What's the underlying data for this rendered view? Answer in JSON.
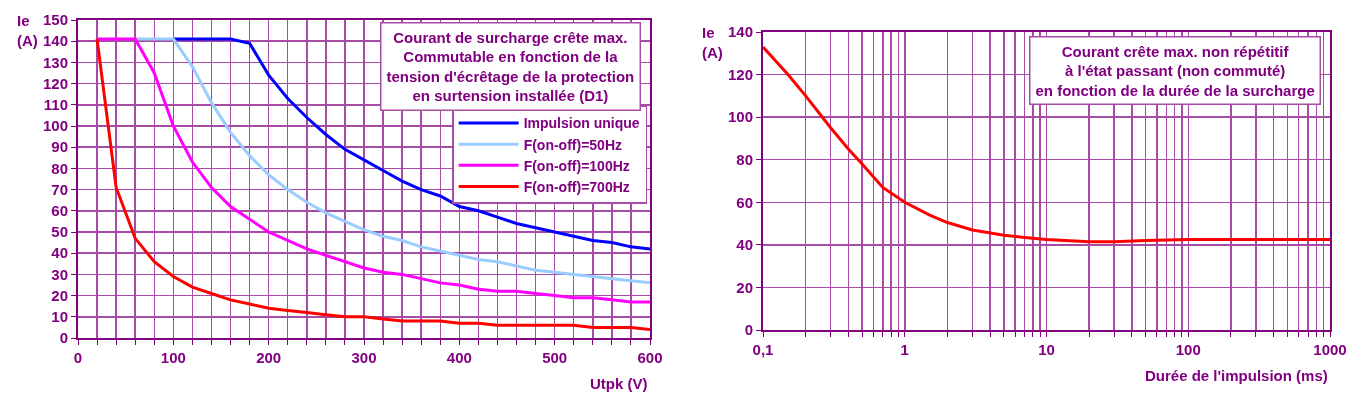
{
  "chart_data": [
    {
      "type": "line",
      "title": "Courant de surcharge crête max.\nCommutable en fonction de la\ntension d'écrêtage de la protection\nen surtension installée (D1)",
      "xlabel": "Utpk (V)",
      "ylabel": "Ie (A)",
      "x": [
        20,
        40,
        60,
        80,
        100,
        120,
        140,
        160,
        180,
        200,
        220,
        240,
        260,
        280,
        300,
        320,
        340,
        360,
        380,
        400,
        420,
        440,
        460,
        480,
        500,
        520,
        540,
        560,
        580,
        600
      ],
      "series": [
        {
          "name": "Impulsion unique",
          "color": "#0000ff",
          "values": [
            null,
            null,
            null,
            null,
            141,
            141,
            141,
            141,
            139,
            124,
            113,
            104,
            96,
            89,
            84,
            79,
            74,
            70,
            67,
            62,
            60,
            57,
            54,
            52,
            50,
            48,
            46,
            45,
            43,
            42
          ]
        },
        {
          "name": "F(on-off)=50Hz",
          "color": "#99ccff",
          "values": [
            null,
            null,
            141,
            141,
            141,
            128,
            111,
            97,
            86,
            77,
            70,
            64,
            59,
            55,
            51,
            48,
            46,
            43,
            41,
            39,
            37,
            36,
            34,
            32,
            31,
            30,
            29,
            28,
            27,
            26
          ]
        },
        {
          "name": "F(on-off)=100Hz",
          "color": "#ff00ff",
          "values": [
            141,
            141,
            141,
            125,
            100,
            83,
            71,
            62,
            56,
            50,
            46,
            42,
            39,
            36,
            33,
            31,
            30,
            28,
            26,
            25,
            23,
            22,
            22,
            21,
            20,
            19,
            19,
            18,
            17,
            17
          ]
        },
        {
          "name": "F(on-off)=700Hz",
          "color": "#ff0000",
          "values": [
            141,
            71,
            47,
            36,
            29,
            24,
            21,
            18,
            16,
            14,
            13,
            12,
            11,
            10,
            10,
            9,
            8,
            8,
            8,
            7,
            7,
            6,
            6,
            6,
            6,
            6,
            5,
            5,
            5,
            4
          ]
        }
      ],
      "xlim": [
        0,
        600
      ],
      "xticks": [
        0,
        {
          "value": 20,
          "label": null
        },
        {
          "value": 40,
          "label": null
        },
        {
          "value": 60,
          "label": null
        },
        {
          "value": 80,
          "label": null
        },
        100,
        {
          "value": 120,
          "label": null
        },
        {
          "value": 140,
          "label": null
        },
        {
          "value": 160,
          "label": null
        },
        {
          "value": 180,
          "label": null
        },
        200,
        {
          "value": 220,
          "label": null
        },
        {
          "value": 240,
          "label": null
        },
        {
          "value": 260,
          "label": null
        },
        {
          "value": 280,
          "label": null
        },
        300,
        {
          "value": 320,
          "label": null
        },
        {
          "value": 340,
          "label": null
        },
        {
          "value": 360,
          "label": null
        },
        {
          "value": 380,
          "label": null
        },
        400,
        {
          "value": 420,
          "label": null
        },
        {
          "value": 440,
          "label": null
        },
        {
          "value": 460,
          "label": null
        },
        {
          "value": 480,
          "label": null
        },
        500,
        {
          "value": 520,
          "label": null
        },
        {
          "value": 540,
          "label": null
        },
        {
          "value": 560,
          "label": null
        },
        {
          "value": 580,
          "label": null
        },
        600
      ],
      "ylim": [
        0,
        150
      ],
      "yticks": [
        0,
        10,
        20,
        30,
        40,
        50,
        60,
        70,
        80,
        90,
        100,
        110,
        120,
        130,
        140,
        150
      ],
      "grid": true,
      "legend": "top right"
    },
    {
      "type": "line",
      "title": "Courant crête max. non répétitif\nà l'état passant (non commuté)\nen fonction de la durée de la surcharge",
      "xlabel": "Durée de l'impulsion (ms)",
      "ylabel": "Ie (A)",
      "series": [
        {
          "color": "#ff0000",
          "x": [
            0.1,
            0.15,
            0.2,
            0.3,
            0.4,
            0.5,
            0.7,
            1,
            1.5,
            2,
            3,
            5,
            7,
            10,
            20,
            30,
            50,
            100,
            1000
          ],
          "values": [
            133,
            120,
            110,
            95,
            85,
            78,
            67,
            60,
            54,
            50.5,
            47,
            44.5,
            43.5,
            42.5,
            41.5,
            41.5,
            42,
            42.5,
            42.5
          ]
        }
      ],
      "xlim": [
        0.1,
        1000
      ],
      "xticks": [
        {
          "value": 0.1,
          "label": "0,1"
        },
        {
          "value": 0.2,
          "label": null
        },
        {
          "value": 0.3,
          "label": null
        },
        {
          "value": 0.4,
          "label": null
        },
        {
          "value": 0.5,
          "label": null
        },
        {
          "value": 0.6,
          "label": null
        },
        {
          "value": 0.7,
          "label": null
        },
        {
          "value": 0.8,
          "label": null
        },
        {
          "value": 0.9,
          "label": null
        },
        1,
        {
          "value": 2,
          "label": null
        },
        {
          "value": 3,
          "label": null
        },
        {
          "value": 4,
          "label": null
        },
        {
          "value": 5,
          "label": null
        },
        {
          "value": 6,
          "label": null
        },
        {
          "value": 7,
          "label": null
        },
        {
          "value": 8,
          "label": null
        },
        {
          "value": 9,
          "label": null
        },
        10,
        {
          "value": 20,
          "label": null
        },
        {
          "value": 30,
          "label": null
        },
        {
          "value": 40,
          "label": null
        },
        {
          "value": 50,
          "label": null
        },
        {
          "value": 60,
          "label": null
        },
        {
          "value": 70,
          "label": null
        },
        {
          "value": 80,
          "label": null
        },
        {
          "value": 90,
          "label": null
        },
        100,
        {
          "value": 200,
          "label": null
        },
        {
          "value": 300,
          "label": null
        },
        {
          "value": 400,
          "label": null
        },
        {
          "value": 500,
          "label": null
        },
        {
          "value": 600,
          "label": null
        },
        {
          "value": 700,
          "label": null
        },
        {
          "value": 800,
          "label": null
        },
        {
          "value": 900,
          "label": null
        },
        1000
      ],
      "ylim": [
        0,
        140
      ],
      "yticks": [
        0,
        20,
        40,
        60,
        80,
        100,
        120,
        140
      ],
      "grid": true,
      "log": "x"
    }
  ]
}
